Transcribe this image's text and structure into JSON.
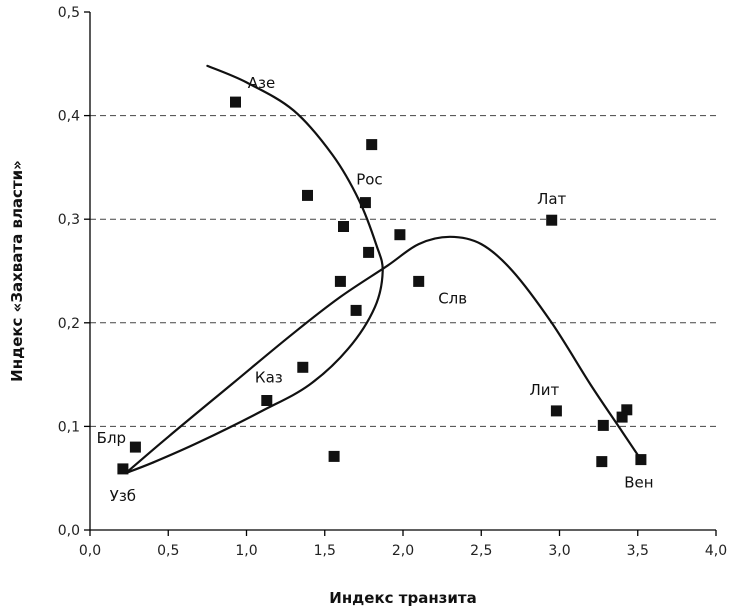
{
  "chart_data": {
    "type": "scatter",
    "title": "",
    "xlabel": "Индекс транзита",
    "ylabel": "Индекс «Захвата власти»",
    "xlim": [
      0,
      4
    ],
    "ylim": [
      0,
      0.5
    ],
    "x_ticks": [
      "0,0",
      "0,5",
      "1,0",
      "1,5",
      "2,0",
      "2,5",
      "3,0",
      "3,5",
      "4,0"
    ],
    "y_ticks": [
      "0,0",
      "0,1",
      "0,2",
      "0,3",
      "0,4",
      "0,5"
    ],
    "grid": "horizontal dashed at 0.1, 0.2, 0.3, 0.4",
    "points": [
      {
        "x": 0.93,
        "y": 0.413,
        "label": "Азе"
      },
      {
        "x": 1.39,
        "y": 0.323,
        "label": ""
      },
      {
        "x": 1.8,
        "y": 0.372,
        "label": ""
      },
      {
        "x": 1.76,
        "y": 0.316,
        "label": "Рос"
      },
      {
        "x": 1.62,
        "y": 0.293,
        "label": ""
      },
      {
        "x": 1.98,
        "y": 0.285,
        "label": ""
      },
      {
        "x": 1.78,
        "y": 0.268,
        "label": ""
      },
      {
        "x": 1.6,
        "y": 0.24,
        "label": ""
      },
      {
        "x": 2.1,
        "y": 0.24,
        "label": "Слв"
      },
      {
        "x": 1.7,
        "y": 0.212,
        "label": ""
      },
      {
        "x": 1.36,
        "y": 0.157,
        "label": ""
      },
      {
        "x": 1.13,
        "y": 0.125,
        "label": "Каз"
      },
      {
        "x": 1.56,
        "y": 0.071,
        "label": ""
      },
      {
        "x": 0.29,
        "y": 0.08,
        "label": "Блр"
      },
      {
        "x": 0.21,
        "y": 0.059,
        "label": "Узб"
      },
      {
        "x": 2.95,
        "y": 0.299,
        "label": "Лат"
      },
      {
        "x": 2.98,
        "y": 0.115,
        "label": "Лит"
      },
      {
        "x": 3.28,
        "y": 0.101,
        "label": ""
      },
      {
        "x": 3.43,
        "y": 0.116,
        "label": ""
      },
      {
        "x": 3.4,
        "y": 0.109,
        "label": ""
      },
      {
        "x": 3.27,
        "y": 0.066,
        "label": ""
      },
      {
        "x": 3.52,
        "y": 0.068,
        "label": "Вен"
      }
    ],
    "curves": [
      {
        "points": [
          [
            0.75,
            0.448
          ],
          [
            1.0,
            0.432
          ],
          [
            1.3,
            0.405
          ],
          [
            1.55,
            0.362
          ],
          [
            1.72,
            0.318
          ],
          [
            1.83,
            0.275
          ],
          [
            1.87,
            0.25
          ],
          [
            1.82,
            0.215
          ],
          [
            1.65,
            0.175
          ],
          [
            1.4,
            0.14
          ],
          [
            1.1,
            0.115
          ],
          [
            0.7,
            0.085
          ],
          [
            0.4,
            0.065
          ],
          [
            0.23,
            0.055
          ]
        ]
      },
      {
        "points": [
          [
            0.23,
            0.055
          ],
          [
            0.5,
            0.09
          ],
          [
            0.9,
            0.14
          ],
          [
            1.3,
            0.19
          ],
          [
            1.6,
            0.225
          ],
          [
            1.9,
            0.255
          ],
          [
            2.1,
            0.276
          ],
          [
            2.3,
            0.283
          ],
          [
            2.5,
            0.276
          ],
          [
            2.7,
            0.25
          ],
          [
            2.95,
            0.2
          ],
          [
            3.2,
            0.14
          ],
          [
            3.4,
            0.095
          ],
          [
            3.52,
            0.068
          ]
        ]
      }
    ]
  }
}
